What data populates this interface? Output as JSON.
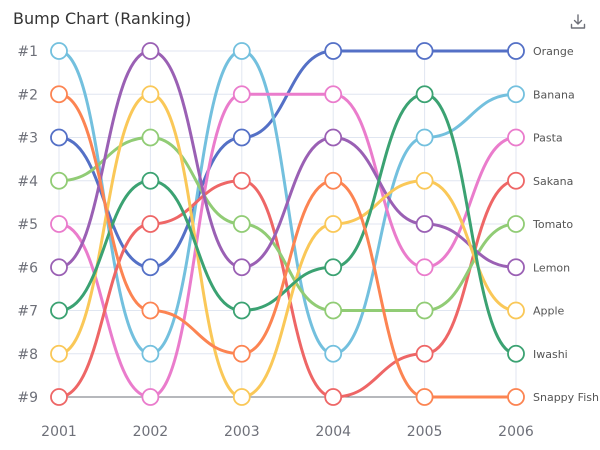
{
  "title": "Bump Chart (Ranking)",
  "toolbox": {
    "icon": "download-icon"
  },
  "chart_data": {
    "type": "line",
    "x": [
      "2001",
      "2002",
      "2003",
      "2004",
      "2005",
      "2006"
    ],
    "y_ticks": [
      "#1",
      "#2",
      "#3",
      "#4",
      "#5",
      "#6",
      "#7",
      "#8",
      "#9"
    ],
    "ylim": [
      1,
      9
    ],
    "y_inverse": true,
    "grid": true,
    "end_labels": true,
    "series": [
      {
        "name": "Orange",
        "color": "#5470c6",
        "values": [
          3,
          6,
          3,
          1,
          1,
          1
        ]
      },
      {
        "name": "Banana",
        "color": "#73c0de",
        "values": [
          1,
          8,
          1,
          8,
          3,
          2
        ]
      },
      {
        "name": "Pasta",
        "color": "#ea7ccc",
        "values": [
          5,
          9,
          2,
          2,
          6,
          3
        ]
      },
      {
        "name": "Sakana",
        "color": "#ee6666",
        "values": [
          9,
          5,
          4,
          9,
          8,
          4
        ]
      },
      {
        "name": "Tomato",
        "color": "#91cc75",
        "values": [
          4,
          3,
          5,
          7,
          7,
          5
        ]
      },
      {
        "name": "Lemon",
        "color": "#9a60b4",
        "values": [
          6,
          1,
          6,
          3,
          5,
          6
        ]
      },
      {
        "name": "Apple",
        "color": "#fac858",
        "values": [
          8,
          2,
          9,
          5,
          4,
          7
        ]
      },
      {
        "name": "Iwashi",
        "color": "#3ba272",
        "values": [
          7,
          4,
          7,
          6,
          2,
          8
        ]
      },
      {
        "name": "Snappy Fish",
        "color": "#fc8452",
        "values": [
          2,
          7,
          8,
          4,
          9,
          9
        ]
      }
    ]
  }
}
